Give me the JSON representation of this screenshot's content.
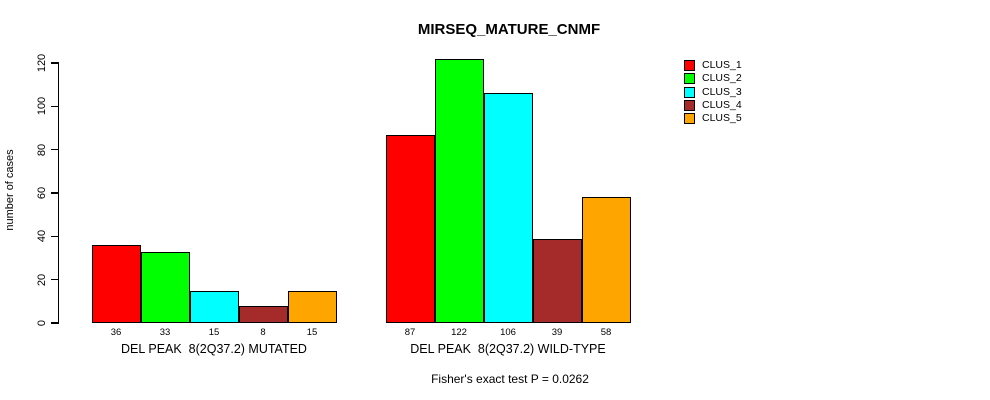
{
  "chart_data": {
    "type": "bar",
    "title": "MIRSEQ_MATURE_CNMF",
    "ylabel": "number of cases",
    "ylim": [
      0,
      120
    ],
    "yticks": [
      0,
      20,
      40,
      60,
      80,
      100,
      120
    ],
    "categories": [
      "DEL PEAK  8(2Q37.2) MUTATED",
      "DEL PEAK  8(2Q37.2) WILD-TYPE"
    ],
    "series": [
      {
        "name": "CLUS_1",
        "color": "#FF0000",
        "values": [
          36,
          87
        ]
      },
      {
        "name": "CLUS_2",
        "color": "#00FF00",
        "values": [
          33,
          122
        ]
      },
      {
        "name": "CLUS_3",
        "color": "#00FFFF",
        "values": [
          15,
          106
        ]
      },
      {
        "name": "CLUS_4",
        "color": "#A52A2A",
        "values": [
          8,
          39
        ]
      },
      {
        "name": "CLUS_5",
        "color": "#FFA500",
        "values": [
          15,
          58
        ]
      }
    ],
    "bar_value_labels": true,
    "annotation": "Fisher's exact test P = 0.0262",
    "legend_position": "right",
    "grid": false
  }
}
